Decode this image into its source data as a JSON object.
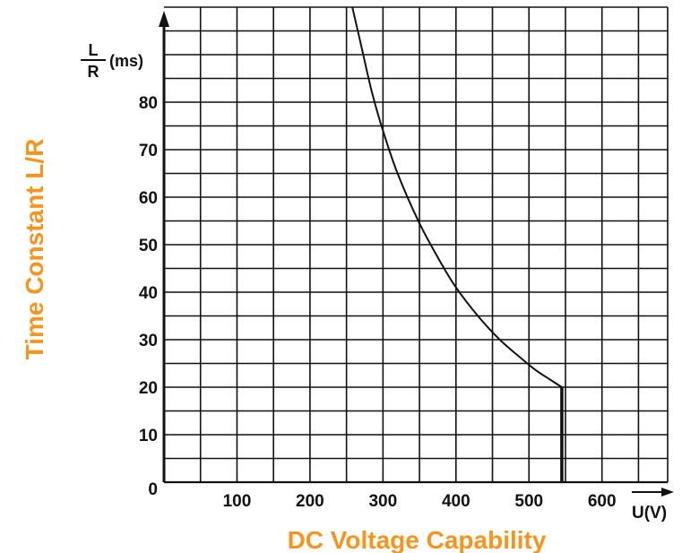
{
  "chart_data": {
    "type": "line",
    "title": "",
    "xlabel": "DC Voltage Capability",
    "ylabel": "Time Constant L/R",
    "x_unit_label": "U(V)",
    "y_unit_label": {
      "numerator": "L",
      "denominator": "R",
      "unit": "(ms)"
    },
    "x_ticks": [
      "100",
      "200",
      "300",
      "400",
      "500",
      "600"
    ],
    "y_ticks": [
      "0",
      "10",
      "20",
      "30",
      "40",
      "50",
      "60",
      "70",
      "80"
    ],
    "xlim": [
      0,
      690
    ],
    "ylim": [
      0,
      100
    ],
    "grid": true,
    "series": [
      {
        "x": [
          258,
          270,
          285,
          300,
          320,
          350,
          380,
          400,
          430,
          460,
          490,
          510,
          530,
          545,
          545
        ],
        "y": [
          100,
          92,
          82,
          74,
          65,
          54.5,
          46,
          41,
          35,
          30,
          26,
          23.5,
          21.5,
          20,
          0
        ]
      }
    ]
  },
  "colors": {
    "title_color": "#F7941D",
    "line_color": "#111111",
    "grid_color": "#111111"
  }
}
